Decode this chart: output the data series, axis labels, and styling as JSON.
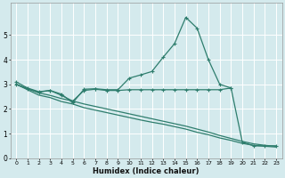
{
  "xlabel": "Humidex (Indice chaleur)",
  "xlim": [
    -0.5,
    23.5
  ],
  "ylim": [
    0,
    6.3
  ],
  "yticks": [
    0,
    1,
    2,
    3,
    4,
    5
  ],
  "xticks": [
    0,
    1,
    2,
    3,
    4,
    5,
    6,
    7,
    8,
    9,
    10,
    11,
    12,
    13,
    14,
    15,
    16,
    17,
    18,
    19,
    20,
    21,
    22,
    23
  ],
  "bg_color": "#d4eaed",
  "grid_color": "#ffffff",
  "line_color": "#2e7d6d",
  "curve1_x": [
    0,
    1,
    2,
    3,
    4,
    5,
    6,
    7,
    8,
    9,
    10,
    11,
    12,
    13,
    14,
    15,
    16,
    17,
    18,
    19,
    20,
    21,
    22,
    23
  ],
  "curve1_y": [
    3.1,
    2.85,
    2.7,
    2.75,
    2.6,
    2.25,
    2.8,
    2.82,
    2.78,
    2.78,
    3.25,
    3.38,
    3.52,
    4.1,
    4.65,
    5.72,
    5.28,
    4.0,
    3.0,
    2.85,
    0.65,
    0.5,
    0.5,
    0.5
  ],
  "curve2_x": [
    0,
    1,
    2,
    3,
    4,
    5,
    6,
    7,
    8,
    9,
    10,
    11,
    12,
    13,
    14,
    15,
    16,
    17,
    18,
    19
  ],
  "curve2_y": [
    3.0,
    2.82,
    2.68,
    2.75,
    2.55,
    2.32,
    2.75,
    2.8,
    2.75,
    2.75,
    2.78,
    2.78,
    2.78,
    2.78,
    2.78,
    2.78,
    2.78,
    2.78,
    2.78,
    2.85
  ],
  "curve3_x": [
    0,
    1,
    2,
    3,
    4,
    5,
    6,
    7,
    8,
    9,
    10,
    11,
    12,
    13,
    14,
    15,
    16,
    17,
    18,
    19,
    20,
    21,
    22,
    23
  ],
  "curve3_y": [
    3.0,
    2.78,
    2.56,
    2.46,
    2.3,
    2.2,
    2.05,
    1.95,
    1.85,
    1.75,
    1.65,
    1.55,
    1.46,
    1.38,
    1.28,
    1.18,
    1.05,
    0.95,
    0.82,
    0.72,
    0.6,
    0.52,
    0.48,
    0.45
  ],
  "curve4_x": [
    0,
    1,
    2,
    3,
    4,
    5,
    6,
    7,
    8,
    9,
    10,
    11,
    12,
    13,
    14,
    15,
    16,
    17,
    18,
    19,
    20,
    21,
    22,
    23
  ],
  "curve4_y": [
    3.0,
    2.82,
    2.65,
    2.55,
    2.42,
    2.32,
    2.2,
    2.1,
    2.0,
    1.9,
    1.8,
    1.7,
    1.6,
    1.5,
    1.4,
    1.3,
    1.18,
    1.06,
    0.92,
    0.8,
    0.68,
    0.58,
    0.52,
    0.48
  ]
}
